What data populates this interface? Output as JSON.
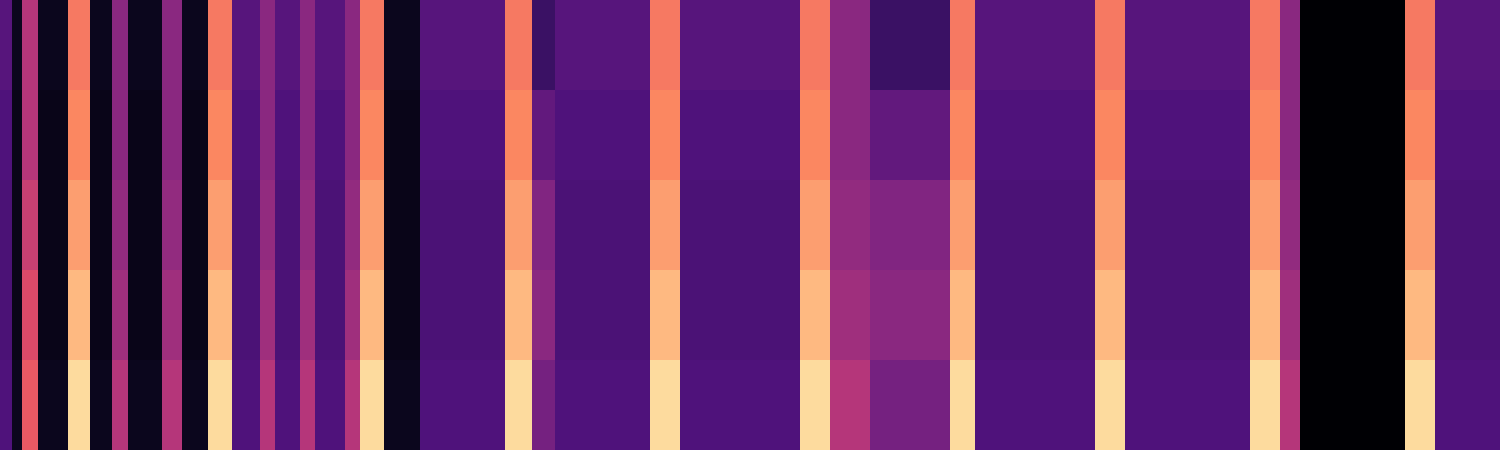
{
  "chart_data": {
    "type": "heatmap",
    "x": [
      0,
      12,
      22,
      38,
      68,
      90,
      112,
      128,
      162,
      182,
      208,
      232,
      260,
      275,
      300,
      315,
      345,
      360,
      384,
      420,
      505,
      532,
      555,
      650,
      680,
      800,
      830,
      870,
      950,
      975,
      1095,
      1125,
      1250,
      1280,
      1300,
      1405,
      1435,
      1500
    ],
    "y": [
      0,
      1,
      2,
      3,
      4,
      5
    ],
    "z": [
      [
        0.25,
        0.05,
        0.65,
        0.05,
        0.93,
        0.05,
        0.5,
        0.05,
        0.5,
        0.05,
        0.93,
        0.25,
        0.5,
        0.25,
        0.5,
        0.25,
        0.5,
        0.93,
        0.05,
        0.25,
        0.93,
        0.35,
        0.25,
        0.93,
        0.25,
        0.93,
        0.5,
        0.35,
        0.93,
        0.25,
        0.93,
        0.25,
        0.93,
        0.5,
        0,
        0.93,
        0.25
      ],
      [
        0.24,
        0.04,
        0.6,
        0.04,
        0.86,
        0.04,
        0.45,
        0.04,
        0.45,
        0.04,
        0.86,
        0.24,
        0.45,
        0.24,
        0.45,
        0.24,
        0.45,
        0.86,
        0.04,
        0.24,
        0.86,
        0.4,
        0.24,
        0.86,
        0.24,
        0.86,
        0.45,
        0.4,
        0.86,
        0.24,
        0.86,
        0.24,
        0.86,
        0.45,
        0,
        0.86,
        0.24
      ],
      [
        0.24,
        0.04,
        0.55,
        0.04,
        0.8,
        0.04,
        0.42,
        0.04,
        0.42,
        0.04,
        0.8,
        0.24,
        0.42,
        0.24,
        0.42,
        0.24,
        0.42,
        0.8,
        0.04,
        0.24,
        0.8,
        0.38,
        0.24,
        0.8,
        0.24,
        0.8,
        0.42,
        0.38,
        0.8,
        0.24,
        0.8,
        0.24,
        0.8,
        0.42,
        0,
        0.8,
        0.24
      ],
      [
        0.25,
        0.04,
        0.5,
        0.04,
        0.75,
        0.04,
        0.4,
        0.04,
        0.4,
        0.04,
        0.75,
        0.25,
        0.4,
        0.25,
        0.4,
        0.25,
        0.4,
        0.75,
        0.04,
        0.25,
        0.75,
        0.3,
        0.25,
        0.75,
        0.25,
        0.75,
        0.4,
        0.3,
        0.75,
        0.25,
        0.75,
        0.25,
        0.75,
        0.4,
        0,
        0.75,
        0.25
      ],
      [
        0.27,
        0.05,
        0.5,
        0.05,
        0.72,
        0.05,
        0.4,
        0.05,
        0.4,
        0.05,
        0.72,
        0.27,
        0.4,
        0.27,
        0.4,
        0.27,
        0.4,
        0.72,
        0.05,
        0.27,
        0.72,
        0.2,
        0.27,
        0.72,
        0.27,
        0.72,
        0.4,
        0.2,
        0.72,
        0.27,
        0.72,
        0.27,
        0.72,
        0.4,
        0,
        0.72,
        0.27
      ]
    ],
    "zlim": [
      0,
      1
    ],
    "xlim": [
      0,
      1500
    ],
    "ylim": [
      0,
      5
    ],
    "tick_labels": false,
    "grid": false
  }
}
